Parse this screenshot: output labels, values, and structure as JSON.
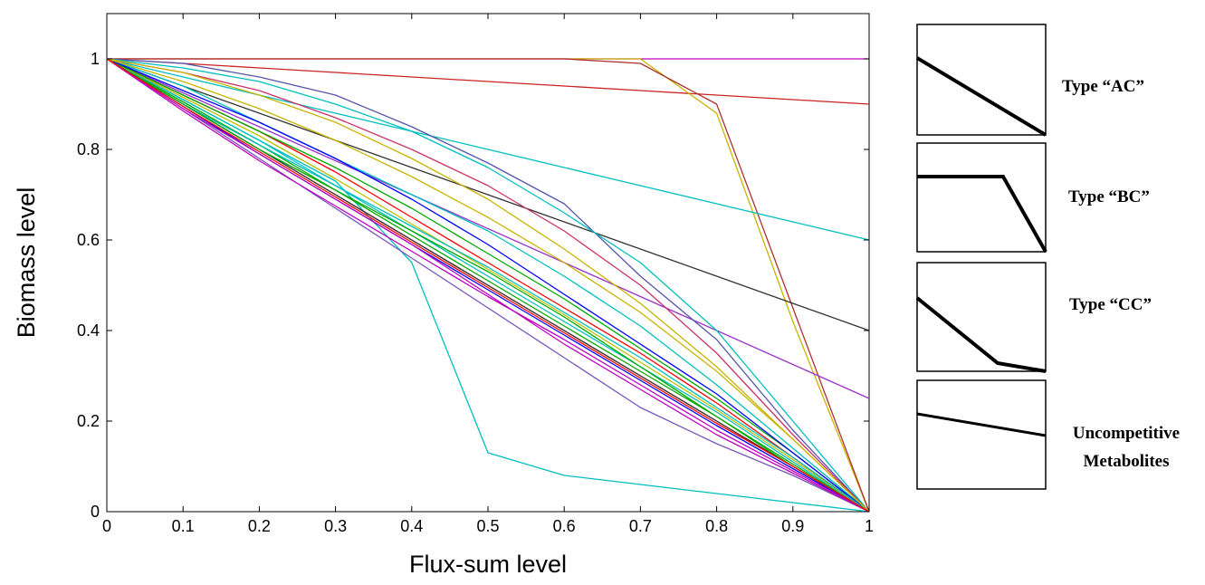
{
  "chart_data": {
    "type": "line",
    "xlabel": "Flux-sum level",
    "ylabel": "Biomass level",
    "xlim": [
      0,
      1
    ],
    "ylim": [
      0,
      1.1
    ],
    "xticks": [
      "0",
      "0.1",
      "0.2",
      "0.3",
      "0.4",
      "0.5",
      "0.6",
      "0.7",
      "0.8",
      "0.9",
      "1"
    ],
    "yticks": [
      "0",
      "0.2",
      "0.4",
      "0.6",
      "0.8",
      "1"
    ],
    "grid": false,
    "x": [
      0,
      0.1,
      0.2,
      0.3,
      0.4,
      0.5,
      0.6,
      0.7,
      0.8,
      0.9,
      1.0
    ],
    "series": [
      {
        "color": "#bf00bf",
        "values": [
          1,
          1,
          1,
          1,
          1,
          1,
          1,
          1,
          1,
          1,
          1
        ]
      },
      {
        "color": "#cc2222",
        "values": [
          1,
          0.99,
          0.98,
          0.97,
          0.96,
          0.95,
          0.94,
          0.93,
          0.92,
          0.91,
          0.9
        ]
      },
      {
        "color": "#c8b400",
        "values": [
          1,
          1,
          1,
          1,
          1,
          1,
          1,
          1,
          0.88,
          0.42,
          0
        ]
      },
      {
        "color": "#b03030",
        "values": [
          1,
          1,
          1,
          1,
          1,
          1,
          1,
          0.99,
          0.9,
          0.45,
          0
        ]
      },
      {
        "color": "#00bfbf",
        "values": [
          1,
          0.96,
          0.92,
          0.88,
          0.84,
          0.8,
          0.76,
          0.72,
          0.68,
          0.64,
          0.6
        ]
      },
      {
        "color": "#333333",
        "values": [
          1,
          0.94,
          0.88,
          0.82,
          0.76,
          0.7,
          0.64,
          0.58,
          0.52,
          0.46,
          0.4
        ]
      },
      {
        "color": "#9933cc",
        "values": [
          1,
          0.925,
          0.85,
          0.775,
          0.7,
          0.625,
          0.55,
          0.475,
          0.4,
          0.325,
          0.25
        ]
      },
      {
        "color": "#5555aa",
        "values": [
          1,
          0.99,
          0.96,
          0.92,
          0.85,
          0.77,
          0.68,
          0.52,
          0.38,
          0.18,
          0
        ]
      },
      {
        "color": "#00bfbf",
        "values": [
          1,
          0.98,
          0.95,
          0.9,
          0.84,
          0.76,
          0.66,
          0.55,
          0.4,
          0.2,
          0
        ]
      },
      {
        "color": "#cc3366",
        "values": [
          1,
          0.97,
          0.93,
          0.87,
          0.8,
          0.72,
          0.62,
          0.5,
          0.35,
          0.17,
          0
        ]
      },
      {
        "color": "#c8b400",
        "values": [
          1,
          0.97,
          0.92,
          0.86,
          0.78,
          0.69,
          0.58,
          0.46,
          0.32,
          0.16,
          0
        ]
      },
      {
        "color": "#00bfbf",
        "values": [
          1,
          0.94,
          0.86,
          0.78,
          0.7,
          0.62,
          0.52,
          0.41,
          0.28,
          0.14,
          0
        ]
      },
      {
        "color": "#00bfbf",
        "values": [
          1,
          0.91,
          0.82,
          0.73,
          0.55,
          0.13,
          0.08,
          0.06,
          0.04,
          0.02,
          0
        ]
      },
      {
        "color": "#7755bb",
        "values": [
          1,
          0.89,
          0.78,
          0.67,
          0.56,
          0.45,
          0.34,
          0.23,
          0.15,
          0.08,
          0
        ]
      },
      {
        "color": "#ff0000",
        "values": [
          1,
          0.9,
          0.8,
          0.7,
          0.6,
          0.5,
          0.4,
          0.3,
          0.2,
          0.1,
          0
        ]
      },
      {
        "color": "#00aa00",
        "values": [
          1,
          0.905,
          0.81,
          0.71,
          0.61,
          0.51,
          0.41,
          0.31,
          0.21,
          0.105,
          0
        ]
      },
      {
        "color": "#0000ff",
        "values": [
          1,
          0.895,
          0.79,
          0.69,
          0.59,
          0.49,
          0.39,
          0.29,
          0.19,
          0.095,
          0
        ]
      },
      {
        "color": "#00bfbf",
        "values": [
          1,
          0.91,
          0.82,
          0.72,
          0.62,
          0.52,
          0.42,
          0.32,
          0.22,
          0.11,
          0
        ]
      },
      {
        "color": "#bf00bf",
        "values": [
          1,
          0.885,
          0.775,
          0.675,
          0.575,
          0.475,
          0.38,
          0.28,
          0.18,
          0.09,
          0
        ]
      },
      {
        "color": "#bfbf00",
        "values": [
          1,
          0.915,
          0.83,
          0.735,
          0.635,
          0.535,
          0.435,
          0.33,
          0.225,
          0.115,
          0
        ]
      },
      {
        "color": "#333333",
        "values": [
          1,
          0.9,
          0.8,
          0.7,
          0.6,
          0.5,
          0.4,
          0.3,
          0.2,
          0.1,
          0
        ]
      },
      {
        "color": "#ff0000",
        "values": [
          1,
          0.92,
          0.84,
          0.75,
          0.65,
          0.55,
          0.45,
          0.35,
          0.24,
          0.12,
          0
        ]
      },
      {
        "color": "#00aa00",
        "values": [
          1,
          0.92,
          0.84,
          0.76,
          0.67,
          0.57,
          0.47,
          0.36,
          0.25,
          0.13,
          0
        ]
      },
      {
        "color": "#0000ff",
        "values": [
          1,
          0.93,
          0.86,
          0.78,
          0.69,
          0.59,
          0.48,
          0.37,
          0.26,
          0.13,
          0
        ]
      },
      {
        "color": "#bf00bf",
        "values": [
          1,
          0.89,
          0.79,
          0.69,
          0.59,
          0.48,
          0.37,
          0.27,
          0.17,
          0.085,
          0
        ]
      },
      {
        "color": "#00bfbf",
        "values": [
          1,
          0.9,
          0.81,
          0.72,
          0.63,
          0.54,
          0.44,
          0.34,
          0.23,
          0.12,
          0
        ]
      },
      {
        "color": "#c8b400",
        "values": [
          1,
          0.95,
          0.89,
          0.82,
          0.74,
          0.65,
          0.55,
          0.44,
          0.31,
          0.16,
          0
        ]
      },
      {
        "color": "#00aa00",
        "values": [
          1,
          0.9,
          0.8,
          0.71,
          0.62,
          0.53,
          0.43,
          0.32,
          0.21,
          0.1,
          0
        ]
      },
      {
        "color": "#ff0000",
        "values": [
          1,
          0.895,
          0.795,
          0.695,
          0.595,
          0.495,
          0.395,
          0.295,
          0.195,
          0.1,
          0
        ]
      }
    ]
  },
  "legend": {
    "items": [
      {
        "label": "Type “AC”"
      },
      {
        "label": "Type “BC”"
      },
      {
        "label": "Type “CC”"
      },
      {
        "label_line1": "Uncompetitive",
        "label_line2": "Metabolites"
      }
    ]
  }
}
